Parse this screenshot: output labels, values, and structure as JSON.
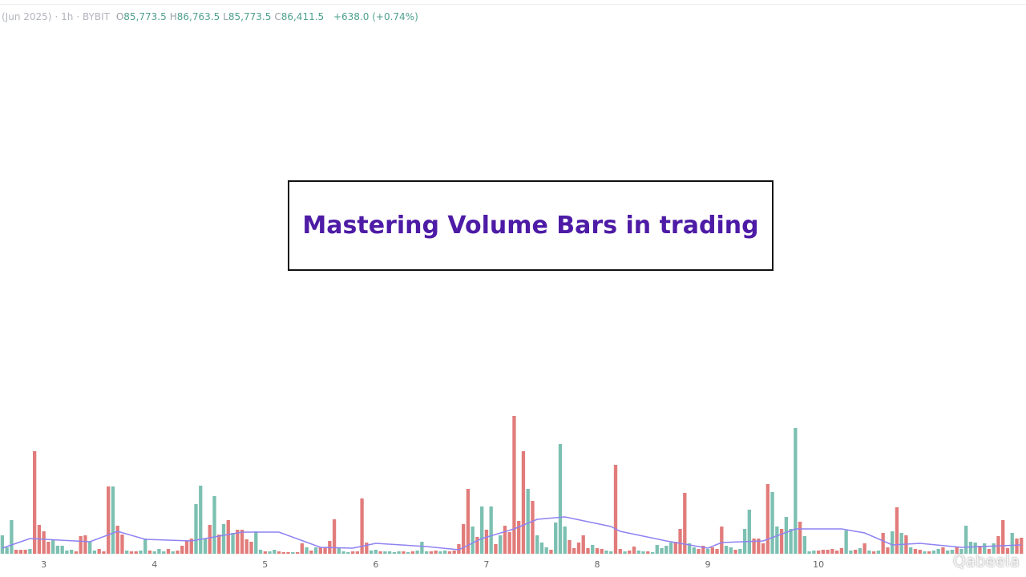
{
  "header": {
    "period": "(Jun 2025)",
    "interval": "1h",
    "exchange": "BYBIT",
    "ohlc": [
      {
        "label": "O",
        "value": "85,773.5"
      },
      {
        "label": "H",
        "value": "86,763.5"
      },
      {
        "label": "L",
        "value": "85,773.5"
      },
      {
        "label": "C",
        "value": "86,411.5"
      }
    ],
    "change": "+638.0 (+0.74%)"
  },
  "banner": {
    "title": "Mastering Volume Bars in trading"
  },
  "watermark": "Qabeela",
  "chart_data": {
    "type": "bar",
    "values": [
      23,
      8,
      42,
      5,
      5,
      5,
      6,
      128,
      36,
      28,
      15,
      18,
      10,
      10,
      4,
      5,
      3,
      22,
      23,
      15,
      4,
      6,
      3,
      84,
      84,
      35,
      24,
      4,
      3,
      3,
      4,
      19,
      4,
      3,
      6,
      3,
      6,
      3,
      4,
      10,
      17,
      19,
      62,
      85,
      19,
      36,
      72,
      24,
      37,
      42,
      26,
      30,
      30,
      18,
      15,
      28,
      5,
      3,
      3,
      5,
      3,
      2,
      2,
      2,
      2,
      13,
      8,
      4,
      8,
      8,
      8,
      16,
      43,
      8,
      3,
      2,
      3,
      3,
      69,
      14,
      4,
      5,
      3,
      3,
      3,
      2,
      3,
      3,
      2,
      3,
      4,
      15,
      3,
      3,
      4,
      3,
      4,
      3,
      4,
      12,
      37,
      81,
      34,
      21,
      59,
      30,
      59,
      12,
      23,
      35,
      27,
      172,
      41,
      128,
      81,
      66,
      23,
      14,
      8,
      5,
      39,
      137,
      34,
      17,
      7,
      14,
      23,
      7,
      11,
      7,
      6,
      4,
      3,
      111,
      6,
      3,
      4,
      9,
      4,
      3,
      3,
      2,
      11,
      7,
      10,
      14,
      15,
      31,
      76,
      13,
      8,
      6,
      10,
      6,
      8,
      6,
      34,
      10,
      8,
      5,
      6,
      31,
      55,
      19,
      19,
      13,
      87,
      77,
      34,
      31,
      46,
      31,
      157,
      40,
      22,
      3,
      4,
      4,
      5,
      5,
      6,
      4,
      7,
      29,
      4,
      5,
      7,
      13,
      4,
      3,
      4,
      26,
      8,
      28,
      58,
      26,
      23,
      8,
      6,
      5,
      3,
      3,
      4,
      6,
      8,
      4,
      5,
      9,
      6,
      35,
      15,
      14,
      10,
      13,
      6,
      13,
      22,
      42,
      7,
      26,
      19,
      20
    ],
    "rising": [
      1,
      1,
      1,
      0,
      0,
      0,
      1,
      0,
      0,
      0,
      0,
      1,
      1,
      1,
      1,
      1,
      0,
      0,
      0,
      1,
      1,
      0,
      0,
      0,
      1,
      0,
      0,
      1,
      0,
      0,
      1,
      1,
      0,
      1,
      1,
      1,
      0,
      1,
      0,
      0,
      0,
      0,
      1,
      1,
      1,
      0,
      1,
      0,
      1,
      0,
      1,
      0,
      0,
      0,
      0,
      1,
      1,
      0,
      1,
      1,
      0,
      0,
      0,
      1,
      0,
      0,
      1,
      0,
      1,
      0,
      0,
      0,
      0,
      1,
      1,
      1,
      0,
      0,
      0,
      0,
      1,
      1,
      0,
      1,
      1,
      1,
      1,
      0,
      1,
      0,
      1,
      1,
      1,
      0,
      0,
      1,
      1,
      0,
      0,
      0,
      0,
      0,
      1,
      0,
      1,
      0,
      1,
      0,
      1,
      0,
      0,
      0,
      0,
      0,
      1,
      0,
      1,
      1,
      1,
      0,
      1,
      1,
      1,
      0,
      0,
      0,
      0,
      0,
      1,
      0,
      0,
      1,
      1,
      0,
      0,
      1,
      0,
      0,
      1,
      1,
      0,
      1,
      1,
      1,
      1,
      1,
      0,
      0,
      0,
      1,
      1,
      0,
      0,
      1,
      0,
      0,
      0,
      1,
      1,
      0,
      1,
      1,
      1,
      0,
      0,
      0,
      0,
      1,
      1,
      0,
      1,
      1,
      1,
      0,
      1,
      1,
      1,
      0,
      0,
      0,
      0,
      0,
      0,
      1,
      1,
      0,
      1,
      0,
      1,
      0,
      1,
      0,
      0,
      1,
      0,
      1,
      0,
      1,
      0,
      0,
      1,
      0,
      1,
      1,
      0,
      1,
      1,
      0,
      1,
      1,
      1,
      1,
      0,
      1,
      0,
      1,
      0,
      0,
      0,
      1,
      0,
      0
    ],
    "up_color": "#7cc0b2",
    "down_color": "#e17c7b",
    "ma": {
      "color": "#8f82f2",
      "x": [
        0,
        6,
        19,
        25,
        31,
        41,
        52,
        60,
        69,
        76,
        81,
        92,
        99,
        104,
        111,
        116,
        122,
        132,
        134,
        144,
        153,
        156,
        165,
        172,
        182,
        187,
        193,
        199,
        208,
        221
      ],
      "values": [
        7,
        19,
        15,
        28,
        18,
        16,
        27,
        27,
        8,
        7,
        13,
        9,
        5,
        19,
        31,
        43,
        46,
        34,
        28,
        16,
        7,
        14,
        16,
        31,
        31,
        26,
        11,
        13,
        8,
        11
      ]
    },
    "xlim": [
      -0.5,
      222
    ],
    "ylim": [
      0,
      200
    ],
    "xticks": [
      {
        "value": 9,
        "label": "3"
      },
      {
        "value": 33,
        "label": "4"
      },
      {
        "value": 57,
        "label": "5"
      },
      {
        "value": 81,
        "label": "6"
      },
      {
        "value": 105,
        "label": "7"
      },
      {
        "value": 129,
        "label": "8"
      },
      {
        "value": 153,
        "label": "9"
      },
      {
        "value": 177,
        "label": "10"
      }
    ]
  }
}
